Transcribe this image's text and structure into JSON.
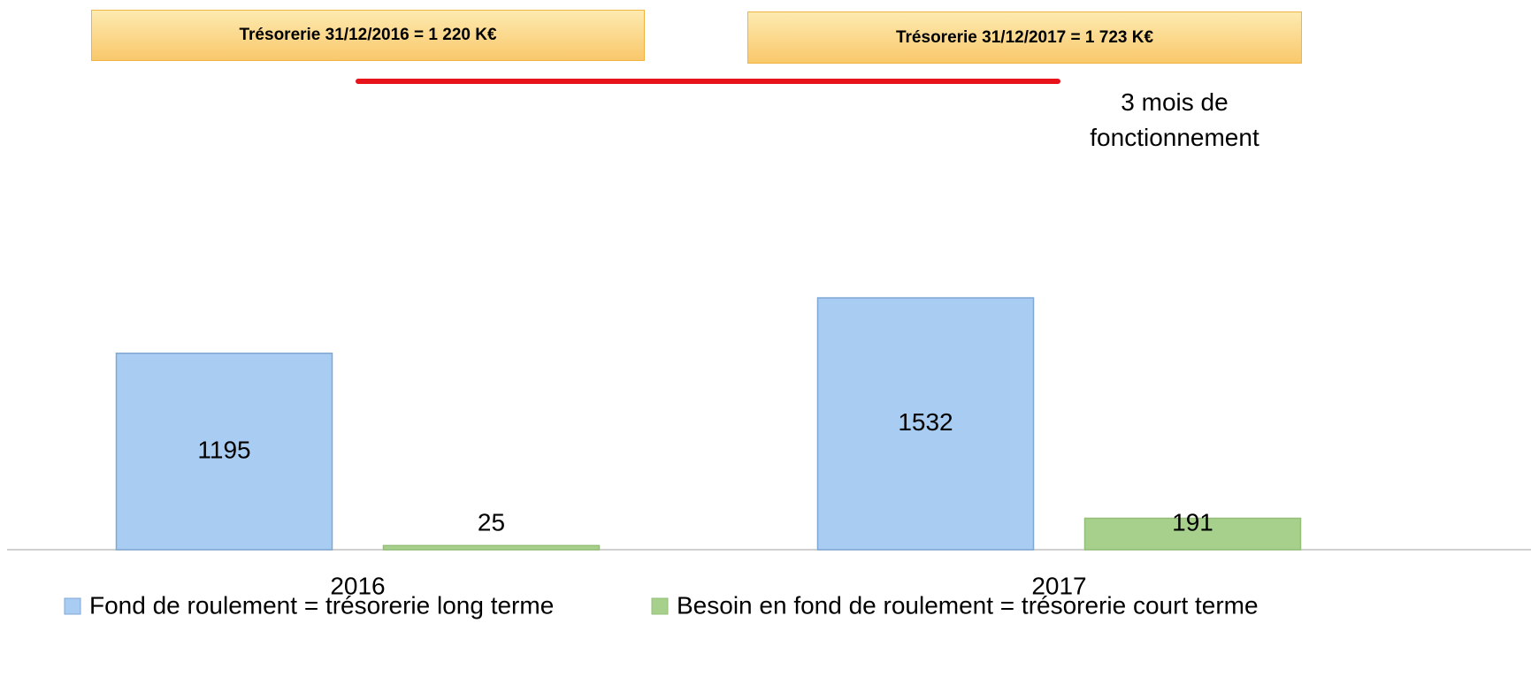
{
  "chart_data": {
    "type": "bar",
    "categories": [
      "2016",
      "2017"
    ],
    "series": [
      {
        "name": "Fond de roulement = trésorerie long terme",
        "color": "#a9cdf2",
        "values": [
          1195,
          1532
        ]
      },
      {
        "name": "Besoin en fond de roulement = trésorerie court terme",
        "color": "#a6d08c",
        "values": [
          25,
          191
        ]
      }
    ],
    "ylim": [
      0,
      2000
    ],
    "annotations": [
      {
        "text": "Trésorerie 31/12/2016 = 1 220 K€"
      },
      {
        "text": "Trésorerie 31/12/2017 = 1 723 K€"
      },
      {
        "text": "3 mois de fonctionnement"
      }
    ],
    "legend": "bottom"
  }
}
